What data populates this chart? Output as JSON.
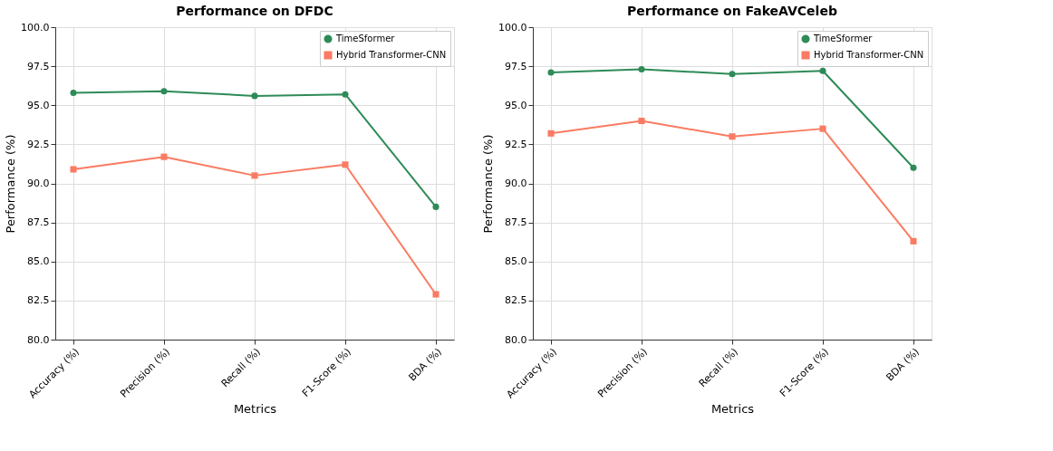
{
  "chart_data": [
    {
      "type": "line",
      "title": "Performance on DFDC",
      "xlabel": "Metrics",
      "ylabel": "Performance (%)",
      "categories": [
        "Accuracy (%)",
        "Precision (%)",
        "Recall (%)",
        "F1-Score (%)",
        "BDA (%)"
      ],
      "series": [
        {
          "name": "TimeSformer",
          "color": "#2e8b57",
          "marker": "circle",
          "values": [
            95.8,
            95.9,
            95.6,
            95.7,
            88.5
          ]
        },
        {
          "name": "Hybrid Transformer-CNN",
          "color": "#fa7b62",
          "marker": "square",
          "values": [
            90.9,
            91.7,
            90.5,
            91.2,
            82.9
          ]
        }
      ],
      "ylim": [
        80,
        100
      ],
      "yticks": [
        {
          "value": 80,
          "label": "80.0"
        },
        {
          "value": 82.5,
          "label": "82.5"
        },
        {
          "value": 85,
          "label": "85.0"
        },
        {
          "value": 87.5,
          "label": "87.5"
        },
        {
          "value": 90,
          "label": "90.0"
        },
        {
          "value": 92.5,
          "label": "92.5"
        },
        {
          "value": 95,
          "label": "95.0"
        },
        {
          "value": 97.5,
          "label": "97.5"
        },
        {
          "value": 100,
          "label": "100.0"
        }
      ],
      "grid": true,
      "legend": "top right",
      "line_style": "solid"
    },
    {
      "type": "line",
      "title": "Performance on FakeAVCeleb",
      "xlabel": "Metrics",
      "ylabel": "Performance (%)",
      "categories": [
        "Accuracy (%)",
        "Precision (%)",
        "Recall (%)",
        "F1-Score (%)",
        "BDA (%)"
      ],
      "series": [
        {
          "name": "TimeSformer",
          "color": "#2e8b57",
          "marker": "circle",
          "values": [
            97.1,
            97.3,
            97.0,
            97.2,
            91.0
          ]
        },
        {
          "name": "Hybrid Transformer-CNN",
          "color": "#fa7b62",
          "marker": "square",
          "values": [
            93.2,
            94.0,
            93.0,
            93.5,
            86.3
          ]
        }
      ],
      "ylim": [
        80,
        100
      ],
      "yticks": [
        {
          "value": 80,
          "label": "80.0"
        },
        {
          "value": 82.5,
          "label": "82.5"
        },
        {
          "value": 85,
          "label": "85.0"
        },
        {
          "value": 87.5,
          "label": "87.5"
        },
        {
          "value": 90,
          "label": "90.0"
        },
        {
          "value": 92.5,
          "label": "92.5"
        },
        {
          "value": 95,
          "label": "95.0"
        },
        {
          "value": 97.5,
          "label": "97.5"
        },
        {
          "value": 100,
          "label": "100.0"
        }
      ],
      "grid": true,
      "legend": "top right",
      "line_style": "solid"
    }
  ]
}
